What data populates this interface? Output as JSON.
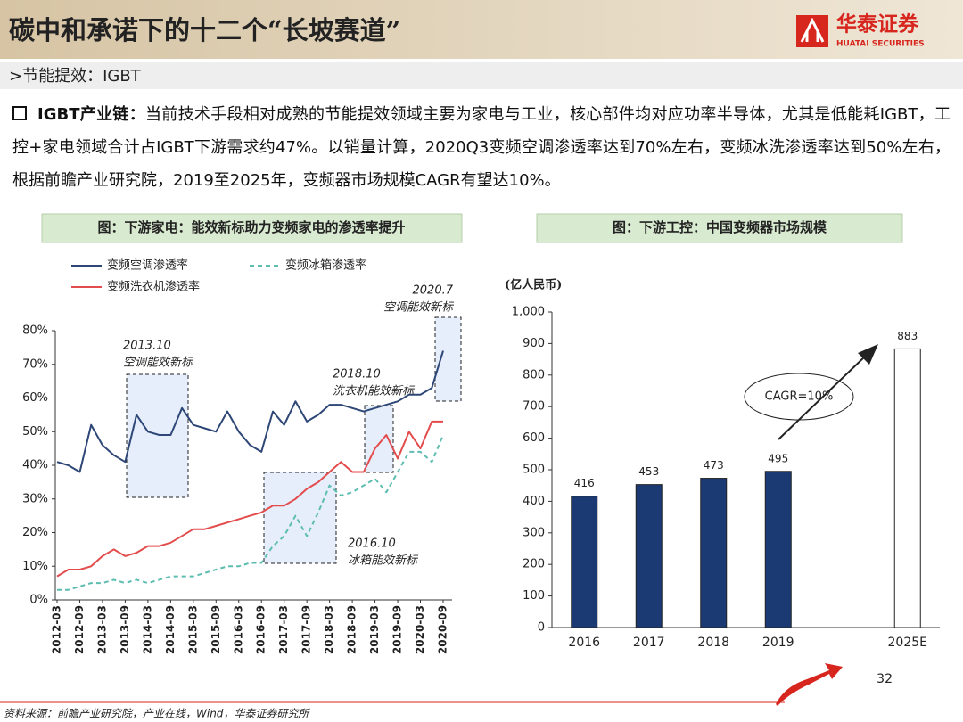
{
  "header": {
    "title": "碳中和承诺下的十二个“长坡赛道”",
    "logo": "华泰证券",
    "logo_en": "HUATAI SECURITIES"
  },
  "section": ">节能提效：IGBT",
  "bullet": {
    "lead": "IGBT产业链：",
    "text": "当前技术手段相对成熟的节能提效领域主要为家电与工业，核心部件均对应功率半导体，尤其是低能耗IGBT，工控+家电领域合计占IGBT下游需求约47%。以销量计算，2020Q3变频空调渗透率达到70%左右，变频冰洗渗透率达到50%左右，根据前瞻产业研究院，2019至2025年，变频器市场规模CAGR有望达10%。"
  },
  "chart_data": [
    {
      "type": "line",
      "title": "图：下游家电：能效新标助力变频家电的渗透率提升",
      "categories": [
        "2012-03",
        null,
        "2012-09",
        null,
        "2013-03",
        null,
        "2013-09",
        null,
        "2014-03",
        null,
        "2014-09",
        null,
        "2015-03",
        null,
        "2015-09",
        null,
        "2016-03",
        null,
        "2016-09",
        null,
        "2017-03",
        null,
        "2017-09",
        null,
        "2018-03",
        null,
        "2018-09",
        null,
        "2019-03",
        null,
        "2019-09",
        null,
        "2020-03",
        null,
        "2020-09"
      ],
      "series": [
        {
          "name": "变频空调渗透率",
          "color": "#2e4777",
          "dash": false,
          "values": [
            41,
            40,
            38,
            52,
            46,
            43,
            41,
            55,
            50,
            49,
            49,
            57,
            52,
            51,
            50,
            56,
            50,
            46,
            44,
            56,
            52,
            59,
            53,
            55,
            58,
            58,
            57,
            56,
            57,
            58,
            59,
            61,
            61,
            63,
            74
          ]
        },
        {
          "name": "变频冰箱渗透率",
          "color": "#5cbdb0",
          "dash": true,
          "values": [
            3,
            3,
            4,
            5,
            5,
            6,
            5,
            6,
            5,
            6,
            7,
            7,
            7,
            8,
            9,
            10,
            10,
            11,
            11,
            16,
            19,
            25,
            19,
            26,
            34,
            31,
            32,
            34,
            36,
            32,
            38,
            44,
            44,
            41,
            49
          ]
        },
        {
          "name": "变频洗衣机渗透率",
          "color": "#e34c4c",
          "dash": false,
          "values": [
            7,
            9,
            9,
            10,
            13,
            15,
            13,
            14,
            16,
            16,
            17,
            19,
            21,
            21,
            22,
            23,
            24,
            25,
            26,
            28,
            28,
            30,
            33,
            35,
            38,
            41,
            38,
            38,
            45,
            49,
            42,
            50,
            45,
            53,
            53
          ]
        }
      ],
      "ylim": [
        0,
        80
      ],
      "yticks": [
        {
          "value": 0,
          "label": "0%"
        },
        {
          "value": 10,
          "label": "10%"
        },
        {
          "value": 20,
          "label": "20%"
        },
        {
          "value": 30,
          "label": "30%"
        },
        {
          "value": 40,
          "label": "40%"
        },
        {
          "value": 50,
          "label": "50%"
        },
        {
          "value": 60,
          "label": "60%"
        },
        {
          "value": 70,
          "label": "70%"
        },
        {
          "value": 80,
          "label": "80%"
        }
      ],
      "annotations": [
        {
          "date": "2013.10",
          "label": "空调能效新标"
        },
        {
          "date": "2018.10",
          "label": "洗衣机能效新标"
        },
        {
          "date": "2016.10",
          "label": "冰箱能效新标"
        },
        {
          "date": "2020.7",
          "label": "空调能效新标"
        }
      ]
    },
    {
      "type": "bar",
      "title": "图：下游工控：中国变频器市场规模",
      "y_label": "(亿人民币)",
      "categories": [
        "2016",
        "2017",
        "2018",
        "2019",
        null,
        "2025E"
      ],
      "values": [
        416,
        453,
        473,
        495,
        null,
        883
      ],
      "colors": [
        "#1b3a74",
        "#1b3a74",
        "#1b3a74",
        "#1b3a74",
        null,
        "#ffffff"
      ],
      "ylim": [
        0,
        1000
      ],
      "yticks": [
        0,
        100,
        200,
        300,
        400,
        500,
        600,
        700,
        800,
        900,
        {
          "value": 1000,
          "label": "1,000"
        }
      ],
      "annotation": "CAGR=10%"
    }
  ],
  "page_number": "32",
  "source": "资料来源：前瞻产业研究院，产业在线，Wind，华泰证券研究所"
}
